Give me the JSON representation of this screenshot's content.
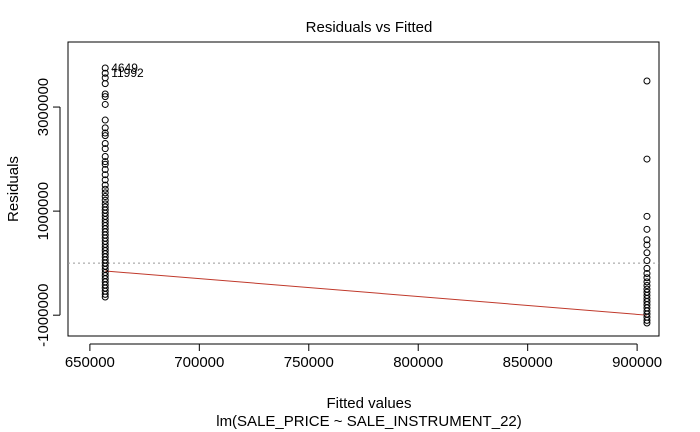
{
  "chart_data": {
    "type": "scatter",
    "title": "Residuals vs Fitted",
    "xlabel": "Fitted values",
    "subtitle": "lm(SALE_PRICE ~ SALE_INSTRUMENT_22)",
    "ylabel": "Residuals",
    "xlim": [
      640000,
      910000
    ],
    "ylim": [
      -1400000,
      4250000
    ],
    "xticks": [
      650000,
      700000,
      750000,
      800000,
      850000,
      900000
    ],
    "xtick_labels": [
      "650000",
      "700000",
      "750000",
      "800000",
      "850000",
      "900000"
    ],
    "yticks": [
      -1000000,
      1000000,
      3000000
    ],
    "ytick_labels": [
      "-1000000",
      "1000000",
      "3000000"
    ],
    "grid": false,
    "reference_line": {
      "y": 0,
      "style": "dotted",
      "color": "#999999"
    },
    "smooth_line": {
      "x": [
        657000,
        904500
      ],
      "y": [
        -150000,
        -1000000
      ],
      "color": "#c0392b"
    },
    "series": [
      {
        "x_value": 657000,
        "y": [
          3750000,
          3650000,
          3560000,
          3450000,
          3250000,
          3200000,
          3050000,
          2750000,
          2600000,
          2500000,
          2450000,
          2300000,
          2200000,
          2050000,
          1950000,
          1900000,
          1800000,
          1700000,
          1600000,
          1500000,
          1420000,
          1350000,
          1280000,
          1210000,
          1140000,
          1080000,
          1020000,
          960000,
          900000,
          840000,
          780000,
          720000,
          660000,
          600000,
          540000,
          480000,
          420000,
          360000,
          300000,
          240000,
          180000,
          120000,
          60000,
          0,
          -60000,
          -120000,
          -180000,
          -240000,
          -300000,
          -360000,
          -420000,
          -480000,
          -540000,
          -600000,
          -650000
        ]
      },
      {
        "x_value": 904500,
        "y": [
          3500000,
          2000000,
          900000,
          650000,
          450000,
          350000,
          200000,
          50000,
          -100000,
          -200000,
          -280000,
          -360000,
          -430000,
          -500000,
          -560000,
          -620000,
          -680000,
          -740000,
          -800000,
          -860000,
          -920000,
          -980000,
          -1040000,
          -1100000,
          -1150000
        ]
      }
    ],
    "annotations": [
      {
        "text": "4649",
        "x": 657000,
        "y": 3750000
      },
      {
        "text": "11992",
        "x": 657000,
        "y": 3650000
      }
    ]
  }
}
